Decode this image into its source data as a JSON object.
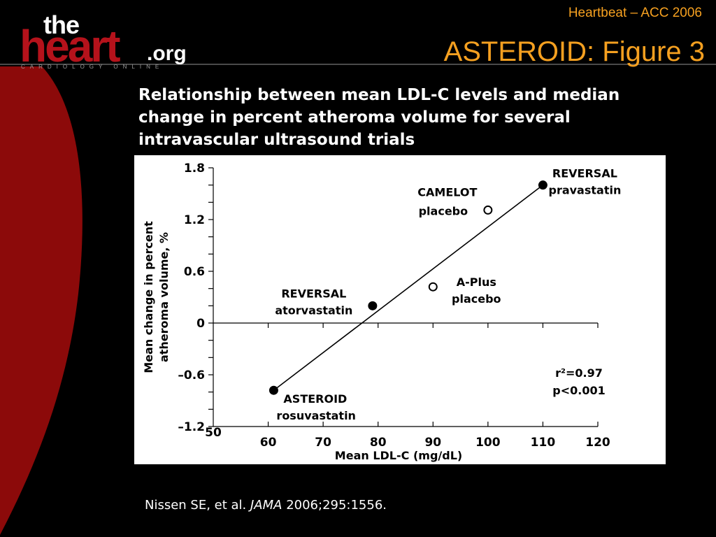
{
  "slide": {
    "event": "Heartbeat – ACC 2006",
    "title": "ASTEROID: Figure 3",
    "subtitle": "Relationship between mean LDL-C levels and median change in percent atheroma volume for several intravascular ultrasound trials",
    "citation_prefix": "Nissen SE, et al. ",
    "citation_journal": "JAMA",
    "citation_suffix": " 2006;295:1556."
  },
  "logo": {
    "the": "the",
    "heart": "heart",
    "org": ".org",
    "tagline": "CARDIOLOGY ONLINE"
  },
  "colors": {
    "background": "#000000",
    "accent_orange": "#f5a020",
    "brand_red": "#b5121b",
    "panel": "#ffffff"
  },
  "chart_data": {
    "type": "scatter",
    "xlabel": "Mean LDL-C (mg/dL)",
    "ylabel_line1": "Mean change in percent",
    "ylabel_line2": "atheroma volume, %",
    "xlim": [
      50,
      120
    ],
    "ylim": [
      -1.2,
      1.8
    ],
    "xticks": [
      50,
      60,
      70,
      80,
      90,
      100,
      110,
      120
    ],
    "yticks": [
      {
        "value": 1.8,
        "label": "1.8"
      },
      {
        "value": 1.2,
        "label": "1.2"
      },
      {
        "value": 0.6,
        "label": "0.6"
      },
      {
        "value": 0,
        "label": "0"
      },
      {
        "value": -0.6,
        "label": "–0.6"
      },
      {
        "value": -1.2,
        "label": "–1.2"
      }
    ],
    "points": [
      {
        "key": "asteroid",
        "x": 61,
        "y": -0.78,
        "filled": true,
        "label1": "ASTEROID",
        "label2": "rosuvastatin"
      },
      {
        "key": "reversal-atorvastatin",
        "x": 79,
        "y": 0.2,
        "filled": true,
        "label1": "REVERSAL",
        "label2": "atorvastatin"
      },
      {
        "key": "aplus",
        "x": 90,
        "y": 0.42,
        "filled": false,
        "label1": "A-Plus",
        "label2": "placebo"
      },
      {
        "key": "camelot",
        "x": 100,
        "y": 1.31,
        "filled": false,
        "label1": "CAMELOT",
        "label2": "placebo"
      },
      {
        "key": "reversal-pravastatin",
        "x": 110,
        "y": 1.6,
        "filled": true,
        "label1": "REVERSAL",
        "label2": "pravastatin"
      }
    ],
    "regression": {
      "x1": 61,
      "y1": -0.78,
      "x2": 110,
      "y2": 1.6
    },
    "stats": {
      "r2": "r²=0.97",
      "p": "p<0.001"
    }
  }
}
